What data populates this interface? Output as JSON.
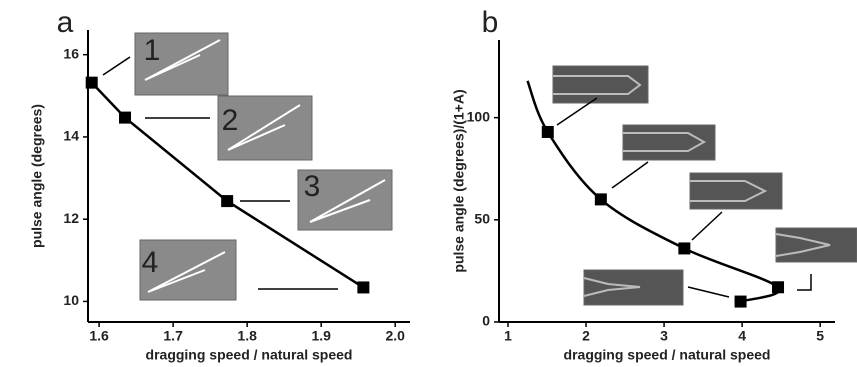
{
  "chart_data": [
    {
      "type": "line",
      "panel_label": "a",
      "xlabel": "dragging speed / natural speed",
      "ylabel": "pulse angle (degrees)",
      "xlim": [
        1.585,
        2.02
      ],
      "ylim": [
        9.5,
        16.6
      ],
      "xticks": [
        1.6,
        1.7,
        1.8,
        1.9,
        {
          "value": 2,
          "label": "2.0"
        }
      ],
      "yticks": [
        10,
        12,
        14,
        16
      ],
      "series": [
        {
          "x": [
            1.59,
            1.635,
            1.773,
            1.957
          ],
          "values": [
            15.32,
            14.47,
            12.44,
            10.34
          ],
          "color": "#000000",
          "marker": "square",
          "linestyle": "solid"
        }
      ],
      "annotations": [
        "1",
        "2",
        "3",
        "4"
      ]
    },
    {
      "type": "line",
      "panel_label": "b",
      "xlabel": "dragging speed / natural speed",
      "ylabel": "pulse angle (degrees)/(1+A)",
      "xlim": [
        0.885,
        5.19
      ],
      "ylim": [
        0,
        138
      ],
      "xticks": [
        1,
        2,
        3,
        4,
        5
      ],
      "yticks": [
        0,
        50,
        100
      ],
      "series": [
        {
          "x": [
            1.25,
            1.51,
            2.19,
            3.26,
            4.46,
            3.98
          ],
          "values": [
            118,
            93,
            60,
            36,
            17,
            10
          ],
          "color": "#000000",
          "marker": "none",
          "linestyle": "smooth"
        },
        {
          "x": [
            1.51,
            2.19,
            3.26,
            3.98,
            4.46
          ],
          "values": [
            93,
            60,
            36,
            10,
            17
          ],
          "color": "#000000",
          "marker": "square",
          "linestyle": "none"
        }
      ]
    }
  ]
}
